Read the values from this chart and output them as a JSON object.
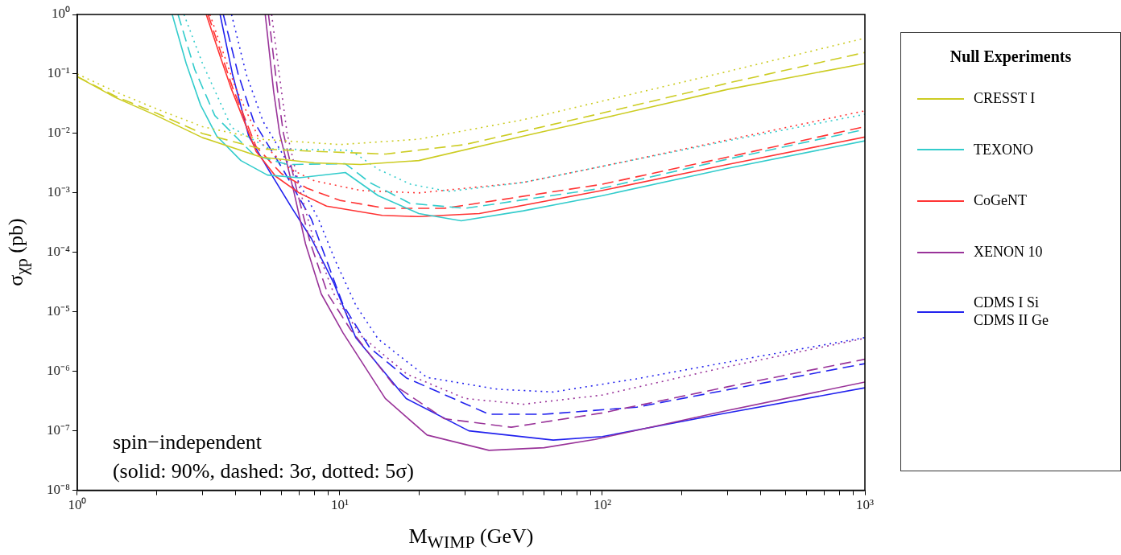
{
  "chart_data": {
    "type": "line",
    "xlabel": "M$_{WIMP}$ (GeV)",
    "ylabel": "σ$_{χp}$ (pb)",
    "legend_title": "Null Experiments",
    "legend": "right",
    "grid": false,
    "marker": "none",
    "log": "xy",
    "xlim": [
      1,
      1000
    ],
    "ylim": [
      1e-08,
      1
    ],
    "xticks": [
      {
        "value": 1,
        "label": "10⁰"
      },
      {
        "value": 2,
        "label": null
      },
      {
        "value": 3,
        "label": null
      },
      {
        "value": 4,
        "label": null
      },
      {
        "value": 5,
        "label": null
      },
      {
        "value": 6,
        "label": null
      },
      {
        "value": 7,
        "label": null
      },
      {
        "value": 8,
        "label": null
      },
      {
        "value": 9,
        "label": null
      },
      {
        "value": 10,
        "label": "10¹"
      },
      {
        "value": 20,
        "label": null
      },
      {
        "value": 30,
        "label": null
      },
      {
        "value": 40,
        "label": null
      },
      {
        "value": 50,
        "label": null
      },
      {
        "value": 60,
        "label": null
      },
      {
        "value": 70,
        "label": null
      },
      {
        "value": 80,
        "label": null
      },
      {
        "value": 90,
        "label": null
      },
      {
        "value": 100,
        "label": "10²"
      },
      {
        "value": 200,
        "label": null
      },
      {
        "value": 300,
        "label": null
      },
      {
        "value": 400,
        "label": null
      },
      {
        "value": 500,
        "label": null
      },
      {
        "value": 600,
        "label": null
      },
      {
        "value": 700,
        "label": null
      },
      {
        "value": 800,
        "label": null
      },
      {
        "value": 900,
        "label": null
      },
      {
        "value": 1000,
        "label": "10³"
      }
    ],
    "yticks": [
      {
        "value": 1e-08,
        "label": "10⁻⁸"
      },
      {
        "value": 1e-07,
        "label": "10⁻⁷"
      },
      {
        "value": 1e-06,
        "label": "10⁻⁶"
      },
      {
        "value": 1e-05,
        "label": "10⁻⁵"
      },
      {
        "value": 0.0001,
        "label": "10⁻⁴"
      },
      {
        "value": 0.001,
        "label": "10⁻³"
      },
      {
        "value": 0.01,
        "label": "10⁻²"
      },
      {
        "value": 0.1,
        "label": "10⁻¹"
      },
      {
        "value": 1,
        "label": "10⁰"
      }
    ],
    "annotations": [
      "spin−independent",
      "(solid: 90%, dashed: 3σ, dotted: 5σ)"
    ],
    "series": [
      {
        "name": "CRESST I",
        "color": "#cccc22",
        "line_style": "solid",
        "x": [
          1,
          1.4,
          2,
          3,
          5,
          8,
          12,
          20,
          50,
          100,
          300,
          1000
        ],
        "values": [
          0.09,
          0.04,
          0.02,
          0.0085,
          0.004,
          0.0032,
          0.003,
          0.0035,
          0.009,
          0.018,
          0.055,
          0.15
        ]
      },
      {
        "color": "#cccc22",
        "line_style": "dashed",
        "x": [
          1,
          1.4,
          2,
          3,
          5,
          8,
          15,
          30,
          100,
          300,
          1000
        ],
        "values": [
          0.09,
          0.042,
          0.022,
          0.01,
          0.0055,
          0.005,
          0.0045,
          0.0065,
          0.022,
          0.07,
          0.23
        ]
      },
      {
        "color": "#cccc22",
        "line_style": "dotted",
        "x": [
          1,
          1.4,
          2,
          3,
          5,
          10,
          20,
          50,
          100,
          300,
          1000
        ],
        "values": [
          0.1,
          0.05,
          0.026,
          0.013,
          0.008,
          0.0065,
          0.008,
          0.017,
          0.035,
          0.11,
          0.4
        ]
      },
      {
        "name": "TEXONO",
        "color": "#33cccc",
        "line_style": "solid",
        "x": [
          2.3,
          2.6,
          2.95,
          3.4,
          4.2,
          5.3,
          7,
          10.5,
          14,
          20,
          29,
          50,
          100,
          300,
          1000
        ],
        "values": [
          1,
          0.15,
          0.03,
          0.009,
          0.0035,
          0.002,
          0.0018,
          0.0022,
          0.0009,
          0.00045,
          0.00034,
          0.0005,
          0.0009,
          0.0026,
          0.0075
        ]
      },
      {
        "color": "#33cccc",
        "line_style": "dashed",
        "x": [
          2.42,
          2.8,
          3.34,
          4.7,
          6.3,
          10.5,
          13,
          18.5,
          30,
          100,
          300,
          1000
        ],
        "values": [
          1,
          0.12,
          0.02,
          0.0044,
          0.003,
          0.0031,
          0.0015,
          0.00067,
          0.00055,
          0.0012,
          0.0037,
          0.0117
        ]
      },
      {
        "color": "#33cccc",
        "line_style": "dotted",
        "x": [
          2.55,
          3,
          3.87,
          5.4,
          11,
          14,
          18.6,
          26,
          50,
          100,
          300,
          1000
        ],
        "values": [
          1,
          0.15,
          0.0126,
          0.0055,
          0.0052,
          0.0025,
          0.0014,
          0.00106,
          0.0015,
          0.0028,
          0.0075,
          0.021
        ]
      },
      {
        "name": "CoGeNT",
        "color": "#ff3333",
        "line_style": "solid",
        "x": [
          3.1,
          3.5,
          3.87,
          4.8,
          5.7,
          7,
          8.9,
          14.5,
          20,
          34,
          100,
          300,
          1000
        ],
        "values": [
          1,
          0.2,
          0.055,
          0.005,
          0.0019,
          0.001,
          0.0006,
          0.00042,
          0.0004,
          0.00045,
          0.0011,
          0.003,
          0.0087
        ]
      },
      {
        "color": "#ff3333",
        "line_style": "dashed",
        "x": [
          3.15,
          3.9,
          4.8,
          6,
          7.5,
          10,
          15,
          25,
          100,
          300,
          1000
        ],
        "values": [
          1,
          0.06,
          0.006,
          0.0021,
          0.0012,
          0.00075,
          0.00055,
          0.00055,
          0.0014,
          0.004,
          0.013
        ]
      },
      {
        "color": "#ff3333",
        "line_style": "dotted",
        "x": [
          3.2,
          4,
          5,
          6.5,
          8,
          12,
          20,
          50,
          100,
          300,
          1000
        ],
        "values": [
          1,
          0.06,
          0.007,
          0.0025,
          0.0016,
          0.0011,
          0.001,
          0.0015,
          0.0028,
          0.0078,
          0.024
        ]
      },
      {
        "name": "XENON 10",
        "color": "#993399",
        "line_style": "solid",
        "x": [
          5.2,
          5.6,
          5.9,
          6.7,
          7.4,
          8.5,
          10.3,
          14.9,
          21.5,
          37,
          60,
          94,
          300,
          1000
        ],
        "values": [
          1,
          0.05,
          0.01,
          0.001,
          0.00014,
          2e-05,
          4.4e-06,
          3.5e-07,
          8.5e-08,
          4.7e-08,
          5.2e-08,
          7.2e-08,
          2.2e-07,
          6.6e-07
        ]
      },
      {
        "color": "#993399",
        "line_style": "dashed",
        "x": [
          5.35,
          5.8,
          6.1,
          6.9,
          7.7,
          9,
          11,
          16,
          25,
          45,
          100,
          300,
          1000
        ],
        "values": [
          1,
          0.05,
          0.01,
          0.001,
          0.00015,
          2e-05,
          5e-06,
          6e-07,
          1.6e-07,
          1.15e-07,
          2e-07,
          5.5e-07,
          1.6e-06
        ]
      },
      {
        "color": "#993399",
        "line_style": "dotted",
        "x": [
          5.5,
          6,
          6.3,
          7.1,
          8,
          9.5,
          12,
          18,
          30,
          50,
          100,
          300,
          1000
        ],
        "values": [
          1,
          0.05,
          0.01,
          0.001,
          0.00015,
          2e-05,
          4e-06,
          9e-07,
          3.5e-07,
          2.8e-07,
          4e-07,
          1.2e-06,
          3.6e-06
        ]
      },
      {
        "name": "CDMS I Si\nCDMS II Ge",
        "color": "#2222ee",
        "line_style": "solid",
        "x": [
          3.5,
          3.9,
          4.5,
          5.4,
          6.6,
          7.8,
          9.5,
          11.5,
          17.9,
          31,
          65,
          100,
          280,
          1000
        ],
        "values": [
          1,
          0.1,
          0.009,
          0.0023,
          0.00054,
          0.00017,
          3e-05,
          3.7e-06,
          3.5e-07,
          1e-07,
          7e-08,
          8e-08,
          1.9e-07,
          5.3e-07
        ]
      },
      {
        "color": "#2222ee",
        "line_style": "dashed",
        "x": [
          3.6,
          4.1,
          4.7,
          6.1,
          7.8,
          8.9,
          10.3,
          13,
          17.9,
          37,
          60,
          135,
          1000
        ],
        "values": [
          1,
          0.1,
          0.016,
          0.0024,
          0.00036,
          7.4e-05,
          1.3e-05,
          2.5e-06,
          7.8e-07,
          1.9e-07,
          1.9e-07,
          2.5e-07,
          1.35e-06
        ]
      },
      {
        "color": "#2222ee",
        "line_style": "dotted",
        "x": [
          3.87,
          4.4,
          5.1,
          6.6,
          8.3,
          9.6,
          11.5,
          14,
          21.5,
          40,
          65,
          135,
          400,
          1000
        ],
        "values": [
          1,
          0.1,
          0.016,
          0.0024,
          0.00036,
          7.4e-05,
          1.3e-05,
          3.5e-06,
          7.9e-07,
          5e-07,
          4.5e-07,
          7.5e-07,
          1.8e-06,
          3.7e-06
        ]
      }
    ]
  }
}
